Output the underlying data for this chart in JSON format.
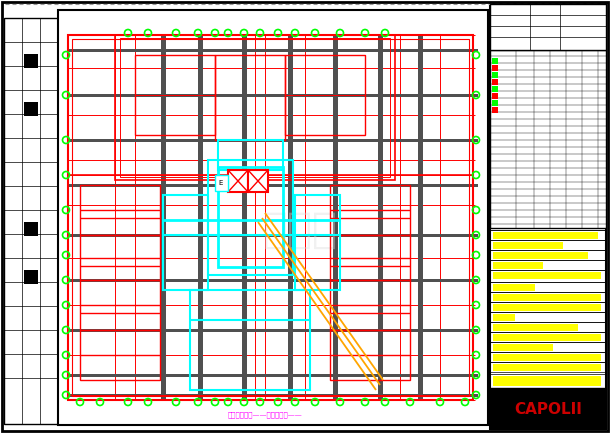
{
  "bg_color": "#ffffff",
  "red": "#ff0000",
  "dark_red": "#cc0000",
  "cyan": "#00ffff",
  "green": "#00ff00",
  "gray": "#888888",
  "dark_gray": "#505050",
  "black_gray": "#333333",
  "orange": "#ffa500",
  "magenta": "#ff00ff",
  "yellow": "#ffff00",
  "black": "#000000",
  "white": "#ffffff",
  "title": "CAPOLII",
  "subtitle": "标准层平面图——建筑平面图——"
}
